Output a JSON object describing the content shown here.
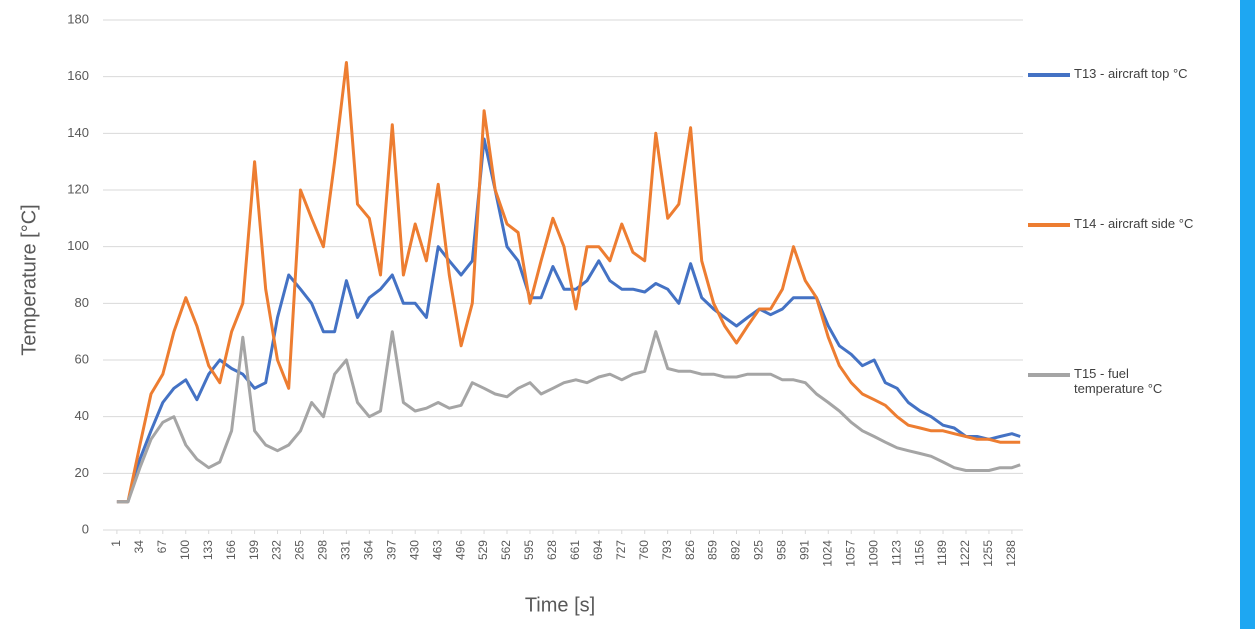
{
  "chart_data": {
    "type": "line",
    "y_label": "Temperature [°C]",
    "x_label": "Time [s]",
    "ylim": [
      0,
      180
    ],
    "yticks": [
      0,
      20,
      40,
      60,
      80,
      100,
      120,
      140,
      160,
      180
    ],
    "xlim": [
      -19,
      1304
    ],
    "xticks": [
      1,
      34,
      67,
      100,
      133,
      166,
      199,
      232,
      265,
      298,
      331,
      364,
      397,
      430,
      463,
      496,
      529,
      562,
      595,
      628,
      661,
      694,
      727,
      760,
      793,
      826,
      859,
      892,
      925,
      958,
      991,
      1024,
      1057,
      1090,
      1123,
      1156,
      1189,
      1222,
      1255,
      1288
    ],
    "grid": true,
    "legend": "right",
    "x": [
      1,
      17,
      34,
      50,
      67,
      83,
      100,
      116,
      133,
      149,
      166,
      182,
      199,
      215,
      232,
      248,
      265,
      281,
      298,
      314,
      331,
      347,
      364,
      380,
      397,
      413,
      430,
      446,
      463,
      479,
      496,
      512,
      529,
      545,
      562,
      578,
      595,
      611,
      628,
      644,
      661,
      677,
      694,
      710,
      727,
      743,
      760,
      776,
      793,
      809,
      826,
      842,
      859,
      875,
      892,
      908,
      925,
      941,
      958,
      974,
      991,
      1007,
      1024,
      1040,
      1057,
      1073,
      1090,
      1106,
      1123,
      1139,
      1156,
      1172,
      1189,
      1205,
      1222,
      1238,
      1255,
      1271,
      1288,
      1300
    ],
    "series": [
      {
        "name": "T13 - aircraft top °C",
        "color": "#4472c4",
        "values": [
          10,
          10,
          25,
          35,
          45,
          50,
          53,
          46,
          55,
          60,
          57,
          55,
          50,
          52,
          75,
          90,
          85,
          80,
          70,
          70,
          88,
          75,
          82,
          85,
          90,
          80,
          80,
          75,
          100,
          95,
          90,
          95,
          138,
          120,
          100,
          95,
          82,
          82,
          93,
          85,
          85,
          88,
          95,
          88,
          85,
          85,
          84,
          87,
          85,
          80,
          94,
          82,
          78,
          75,
          72,
          75,
          78,
          76,
          78,
          82,
          82,
          82,
          72,
          65,
          62,
          58,
          60,
          52,
          50,
          45,
          42,
          40,
          37,
          36,
          33,
          33,
          32,
          33,
          34,
          33
        ]
      },
      {
        "name": "T14 - aircraft side  °C",
        "color": "#ed7d31",
        "values": [
          10,
          10,
          30,
          48,
          55,
          70,
          82,
          72,
          58,
          52,
          70,
          80,
          130,
          85,
          60,
          50,
          120,
          110,
          100,
          130,
          165,
          115,
          110,
          90,
          143,
          90,
          108,
          95,
          122,
          90,
          65,
          80,
          148,
          120,
          108,
          105,
          80,
          95,
          110,
          100,
          78,
          100,
          100,
          95,
          108,
          98,
          95,
          140,
          110,
          115,
          142,
          95,
          80,
          72,
          66,
          72,
          78,
          78,
          85,
          100,
          88,
          82,
          68,
          58,
          52,
          48,
          46,
          44,
          40,
          37,
          36,
          35,
          35,
          34,
          33,
          32,
          32,
          31,
          31,
          31
        ]
      },
      {
        "name": "T15 - fuel temperature °C",
        "color": "#a5a5a5",
        "values": [
          10,
          10,
          22,
          32,
          38,
          40,
          30,
          25,
          22,
          24,
          35,
          68,
          35,
          30,
          28,
          30,
          35,
          45,
          40,
          55,
          60,
          45,
          40,
          42,
          70,
          45,
          42,
          43,
          45,
          43,
          44,
          52,
          50,
          48,
          47,
          50,
          52,
          48,
          50,
          52,
          53,
          52,
          54,
          55,
          53,
          55,
          56,
          70,
          57,
          56,
          56,
          55,
          55,
          54,
          54,
          55,
          55,
          55,
          53,
          53,
          52,
          48,
          45,
          42,
          38,
          35,
          33,
          31,
          29,
          28,
          27,
          26,
          24,
          22,
          21,
          21,
          21,
          22,
          22,
          23
        ]
      }
    ]
  }
}
